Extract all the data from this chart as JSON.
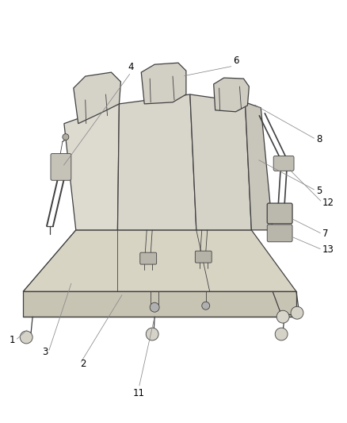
{
  "background_color": "#ffffff",
  "line_color": "#404040",
  "label_color": "#000000",
  "label_fontsize": 8.5,
  "figsize": [
    4.38,
    5.33
  ],
  "dpi": 100
}
